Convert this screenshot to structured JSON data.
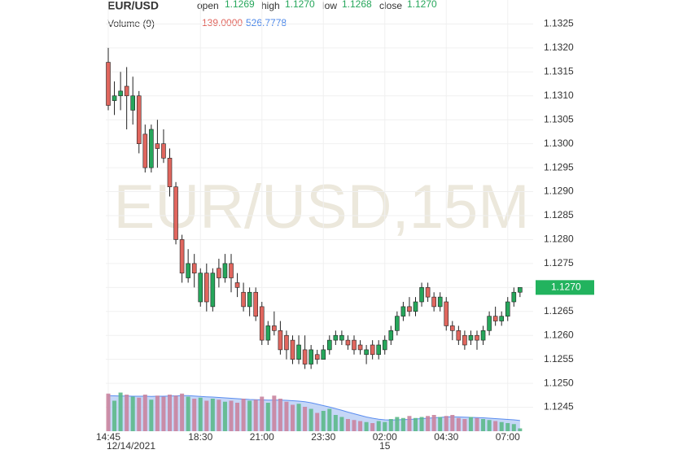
{
  "chart_data": {
    "type": "candlestick",
    "title": "EUR/USD",
    "watermark": "EUR/USD,15M",
    "header": {
      "open_label": "open",
      "open": "1.1269",
      "high_label": "high",
      "high": "1.1270",
      "low_label": "low",
      "low": "1.1268",
      "close_label": "close",
      "close": "1.1270"
    },
    "last_price_label": "1.1270",
    "categories": [
      "14:45",
      null,
      null,
      null,
      null,
      null,
      null,
      null,
      null,
      null,
      null,
      null,
      null,
      null,
      null,
      "18:30",
      null,
      null,
      null,
      null,
      null,
      null,
      null,
      null,
      null,
      "21:00",
      null,
      null,
      null,
      null,
      null,
      null,
      null,
      null,
      null,
      "23:30",
      null,
      null,
      null,
      null,
      null,
      null,
      null,
      null,
      null,
      "02:00",
      null,
      null,
      null,
      null,
      null,
      null,
      null,
      null,
      null,
      "04:30",
      null,
      null,
      null,
      null,
      null,
      null,
      null,
      null,
      null,
      "07:00",
      null,
      null
    ],
    "subcategories": [
      "12/14/2021",
      null,
      null,
      null,
      null,
      null,
      null,
      null,
      null,
      null,
      null,
      null,
      null,
      null,
      null,
      null,
      null,
      null,
      null,
      null,
      null,
      null,
      null,
      null,
      null,
      null,
      null,
      null,
      null,
      null,
      null,
      null,
      null,
      null,
      null,
      null,
      null,
      null,
      null,
      null,
      null,
      null,
      null,
      null,
      null,
      "15",
      null,
      null,
      null,
      null,
      null,
      null,
      null,
      null,
      null,
      null,
      null,
      null,
      null,
      null,
      null,
      null,
      null,
      null,
      null,
      null,
      null,
      null
    ],
    "open": [
      1.1317,
      1.1309,
      1.131,
      1.1312,
      1.1307,
      1.131,
      1.1302,
      1.1295,
      1.13,
      1.13,
      1.1297,
      1.1291,
      1.128,
      1.1272,
      1.1275,
      1.1267,
      1.1273,
      1.1266,
      1.1274,
      1.1272,
      1.1275,
      1.1271,
      1.1269,
      1.1266,
      1.1269,
      1.1266,
      1.1259,
      1.1262,
      1.1261,
      1.126,
      1.1259,
      1.1255,
      1.1257,
      1.1254,
      1.1256,
      1.1255,
      1.1257,
      1.1259,
      1.1259,
      1.1259,
      1.1259,
      1.1258,
      1.1256,
      1.1258,
      1.1256,
      1.1257,
      1.1259,
      1.1261,
      1.1264,
      1.1266,
      1.1265,
      1.1267,
      1.127,
      1.1268,
      1.1266,
      1.1267,
      1.1262,
      1.1261,
      1.126,
      1.1259,
      1.126,
      1.1259,
      1.1261,
      1.1264,
      1.1263,
      1.1264,
      1.1267,
      1.1269
    ],
    "high": [
      1.132,
      1.1313,
      1.1315,
      1.1316,
      1.1314,
      1.1311,
      1.1304,
      1.1304,
      1.1305,
      1.1303,
      1.1299,
      1.1292,
      1.1281,
      1.1278,
      1.1277,
      1.1274,
      1.1275,
      1.1274,
      1.1276,
      1.1277,
      1.1277,
      1.1273,
      1.1271,
      1.127,
      1.127,
      1.1267,
      1.1263,
      1.1265,
      1.1263,
      1.1261,
      1.126,
      1.126,
      1.126,
      1.1258,
      1.1257,
      1.1258,
      1.126,
      1.1261,
      1.1261,
      1.126,
      1.126,
      1.1259,
      1.1258,
      1.1259,
      1.1259,
      1.126,
      1.1262,
      1.1265,
      1.1267,
      1.1268,
      1.1268,
      1.1271,
      1.1271,
      1.1269,
      1.1269,
      1.1268,
      1.1263,
      1.1262,
      1.1261,
      1.1261,
      1.1261,
      1.1262,
      1.1265,
      1.1266,
      1.1265,
      1.1268,
      1.127,
      1.127
    ],
    "low": [
      1.1307,
      1.1306,
      1.1307,
      1.1303,
      1.1304,
      1.1298,
      1.1294,
      1.1294,
      1.1295,
      1.1296,
      1.1289,
      1.1279,
      1.1271,
      1.1271,
      1.127,
      1.1266,
      1.1265,
      1.1265,
      1.127,
      1.1271,
      1.1269,
      1.1268,
      1.1265,
      1.1264,
      1.1263,
      1.1258,
      1.1258,
      1.126,
      1.1256,
      1.1255,
      1.1254,
      1.1254,
      1.1253,
      1.1253,
      1.1254,
      1.1255,
      1.1256,
      1.1258,
      1.1258,
      1.1257,
      1.1256,
      1.1256,
      1.1254,
      1.1255,
      1.1255,
      1.1256,
      1.1258,
      1.126,
      1.1263,
      1.1264,
      1.1264,
      1.1266,
      1.1267,
      1.1265,
      1.1265,
      1.1261,
      1.1259,
      1.1258,
      1.1257,
      1.1258,
      1.1257,
      1.1258,
      1.126,
      1.1262,
      1.1262,
      1.1263,
      1.1266,
      1.1268
    ],
    "close": [
      1.1308,
      1.131,
      1.1311,
      1.131,
      1.131,
      1.13,
      1.1295,
      1.1303,
      1.1299,
      1.1297,
      1.1291,
      1.128,
      1.1273,
      1.1275,
      1.1273,
      1.1273,
      1.1267,
      1.1273,
      1.1272,
      1.1275,
      1.1272,
      1.127,
      1.1266,
      1.1269,
      1.1264,
      1.1259,
      1.1262,
      1.1261,
      1.1257,
      1.1257,
      1.1255,
      1.1258,
      1.1254,
      1.1257,
      1.1255,
      1.1257,
      1.1259,
      1.126,
      1.126,
      1.1258,
      1.1257,
      1.1257,
      1.1257,
      1.1256,
      1.1258,
      1.1259,
      1.1261,
      1.1264,
      1.1266,
      1.1265,
      1.1267,
      1.127,
      1.1268,
      1.1266,
      1.1268,
      1.1262,
      1.1261,
      1.1259,
      1.1258,
      1.126,
      1.1259,
      1.1261,
      1.1264,
      1.1263,
      1.1264,
      1.1267,
      1.1269,
      1.127
    ],
    "up_color": "#26a65b",
    "down_color": "#e0665e",
    "ylim": [
      1.124,
      1.133
    ],
    "yticks": [
      1.1325,
      {
        "value": 1.132,
        "label": "1.1320"
      },
      1.1315,
      {
        "value": 1.131,
        "label": "1.1310"
      },
      1.1305,
      {
        "value": 1.13,
        "label": "1.1300"
      },
      1.1295,
      {
        "value": 1.129,
        "label": "1.1290"
      },
      1.1285,
      {
        "value": 1.128,
        "label": "1.1280"
      },
      1.1275,
      {
        "value": 1.127,
        "label": "1.1270"
      },
      1.1265,
      {
        "value": 1.126,
        "label": "1.1260"
      },
      1.1255,
      {
        "value": 1.125,
        "label": "1.1250"
      },
      1.1245
    ],
    "grid": true,
    "volume": {
      "title": "Volume (9)",
      "values": [
        1850,
        1500,
        1900,
        1800,
        1700,
        1650,
        1800,
        1550,
        1750,
        1700,
        1800,
        1750,
        1850,
        1700,
        1600,
        1650,
        1500,
        1600,
        1550,
        1450,
        1500,
        1400,
        1600,
        1500,
        1550,
        1700,
        1400,
        1750,
        1600,
        1450,
        1300,
        1350,
        1200,
        1100,
        900,
        1000,
        1100,
        800,
        700,
        600,
        550,
        500,
        450,
        400,
        500,
        450,
        600,
        700,
        650,
        750,
        650,
        700,
        750,
        800,
        700,
        750,
        800,
        650,
        600,
        700,
        650,
        600,
        550,
        500,
        450,
        400,
        350,
        139
      ],
      "value_label": "139.0000",
      "ma": [
        1750,
        1740,
        1730,
        1730,
        1720,
        1720,
        1720,
        1710,
        1720,
        1720,
        1730,
        1740,
        1750,
        1750,
        1730,
        1710,
        1690,
        1680,
        1660,
        1640,
        1620,
        1600,
        1580,
        1560,
        1550,
        1540,
        1530,
        1530,
        1530,
        1520,
        1500,
        1480,
        1450,
        1400,
        1330,
        1260,
        1190,
        1110,
        1030,
        940,
        860,
        780,
        700,
        640,
        590,
        560,
        550,
        560,
        570,
        580,
        600,
        620,
        640,
        660,
        680,
        700,
        710,
        700,
        690,
        680,
        670,
        660,
        640,
        620,
        600,
        580,
        560,
        526.7778
      ],
      "ma_label": "526.7778",
      "up_color": "#5cb98a",
      "down_color": "#c9849f",
      "ma_color": "#5b8def",
      "ylim": [
        0,
        3600
      ]
    }
  }
}
